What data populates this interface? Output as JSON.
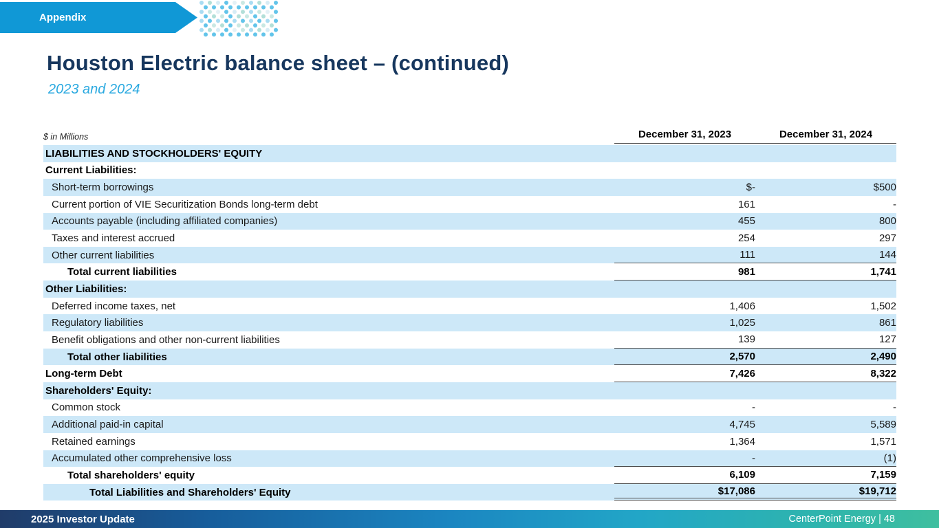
{
  "appendix_label": "Appendix",
  "title": "Houston Electric balance sheet – (continued)",
  "subtitle": "2023 and 2024",
  "table": {
    "units_note": "$ in Millions",
    "col_headers": [
      "December 31, 2023",
      "December 31, 2024"
    ],
    "rows": [
      {
        "label": "LIABILITIES AND STOCKHOLDERS' EQUITY",
        "v2023": "",
        "v2024": "",
        "bold": true,
        "shade": true,
        "indent": 0,
        "line": "none"
      },
      {
        "label": "Current Liabilities:",
        "v2023": "",
        "v2024": "",
        "bold": true,
        "shade": false,
        "indent": 0,
        "line": "none"
      },
      {
        "label": "Short-term borrowings",
        "v2023": "$-",
        "v2024": "$500",
        "bold": false,
        "shade": true,
        "indent": 1,
        "line": "none"
      },
      {
        "label": "Current portion of VIE Securitization Bonds long-term debt",
        "v2023": "161",
        "v2024": "-",
        "bold": false,
        "shade": false,
        "indent": 1,
        "line": "none"
      },
      {
        "label": "Accounts payable (including affiliated companies)",
        "v2023": "455",
        "v2024": "800",
        "bold": false,
        "shade": true,
        "indent": 1,
        "line": "none"
      },
      {
        "label": "Taxes and interest accrued",
        "v2023": "254",
        "v2024": "297",
        "bold": false,
        "shade": false,
        "indent": 1,
        "line": "none"
      },
      {
        "label": "Other current liabilities",
        "v2023": "111",
        "v2024": "144",
        "bold": false,
        "shade": true,
        "indent": 1,
        "line": "bottom"
      },
      {
        "label": "Total current liabilities",
        "v2023": "981",
        "v2024": "1,741",
        "bold": true,
        "shade": false,
        "indent": 2,
        "line": "bottom"
      },
      {
        "label": "Other Liabilities:",
        "v2023": "",
        "v2024": "",
        "bold": true,
        "shade": true,
        "indent": 0,
        "line": "none"
      },
      {
        "label": "Deferred income taxes, net",
        "v2023": "1,406",
        "v2024": "1,502",
        "bold": false,
        "shade": false,
        "indent": 1,
        "line": "none"
      },
      {
        "label": "Regulatory liabilities",
        "v2023": "1,025",
        "v2024": "861",
        "bold": false,
        "shade": true,
        "indent": 1,
        "line": "none"
      },
      {
        "label": "Benefit obligations and other non-current liabilities",
        "v2023": "139",
        "v2024": "127",
        "bold": false,
        "shade": false,
        "indent": 1,
        "line": "bottom"
      },
      {
        "label": "Total other liabilities",
        "v2023": "2,570",
        "v2024": "2,490",
        "bold": true,
        "shade": true,
        "indent": 2,
        "line": "bottom"
      },
      {
        "label": "Long-term Debt",
        "v2023": "7,426",
        "v2024": "8,322",
        "bold": true,
        "shade": false,
        "indent": 0,
        "line": "bottom"
      },
      {
        "label": "Shareholders' Equity:",
        "v2023": "",
        "v2024": "",
        "bold": true,
        "shade": true,
        "indent": 0,
        "line": "none"
      },
      {
        "label": "Common stock",
        "v2023": "-",
        "v2024": "-",
        "bold": false,
        "shade": false,
        "indent": 1,
        "line": "none"
      },
      {
        "label": "Additional paid-in capital",
        "v2023": "4,745",
        "v2024": "5,589",
        "bold": false,
        "shade": true,
        "indent": 1,
        "line": "none"
      },
      {
        "label": "Retained earnings",
        "v2023": "1,364",
        "v2024": "1,571",
        "bold": false,
        "shade": false,
        "indent": 1,
        "line": "none"
      },
      {
        "label": "Accumulated other comprehensive loss",
        "v2023": "-",
        "v2024": "(1)",
        "bold": false,
        "shade": true,
        "indent": 1,
        "line": "bottom"
      },
      {
        "label": "Total shareholders' equity",
        "v2023": "6,109",
        "v2024": "7,159",
        "bold": true,
        "shade": false,
        "indent": 2,
        "line": "bottom"
      },
      {
        "label": "Total Liabilities and Shareholders' Equity",
        "v2023": "$17,086",
        "v2024": "$19,712",
        "bold": true,
        "shade": true,
        "indent": 3,
        "line": "double"
      }
    ]
  },
  "footer": {
    "left": "2025 Investor Update",
    "right": "CenterPoint Energy | 48"
  },
  "colors": {
    "banner_blue": "#1098d6",
    "row_shade_blue": "#cde8f8",
    "title_navy": "#17375e",
    "subtitle_blue": "#2aa9e0",
    "rule_gray": "#4d4d4d",
    "footer_gradient_start": "#203c69",
    "footer_gradient_end": "#3fbf9f",
    "dot_palette": [
      "#a9dcf2",
      "#c9e8e3",
      "#e4f1f6",
      "#62c4ea",
      "#d6ecf5",
      "#b2dfd8"
    ]
  }
}
